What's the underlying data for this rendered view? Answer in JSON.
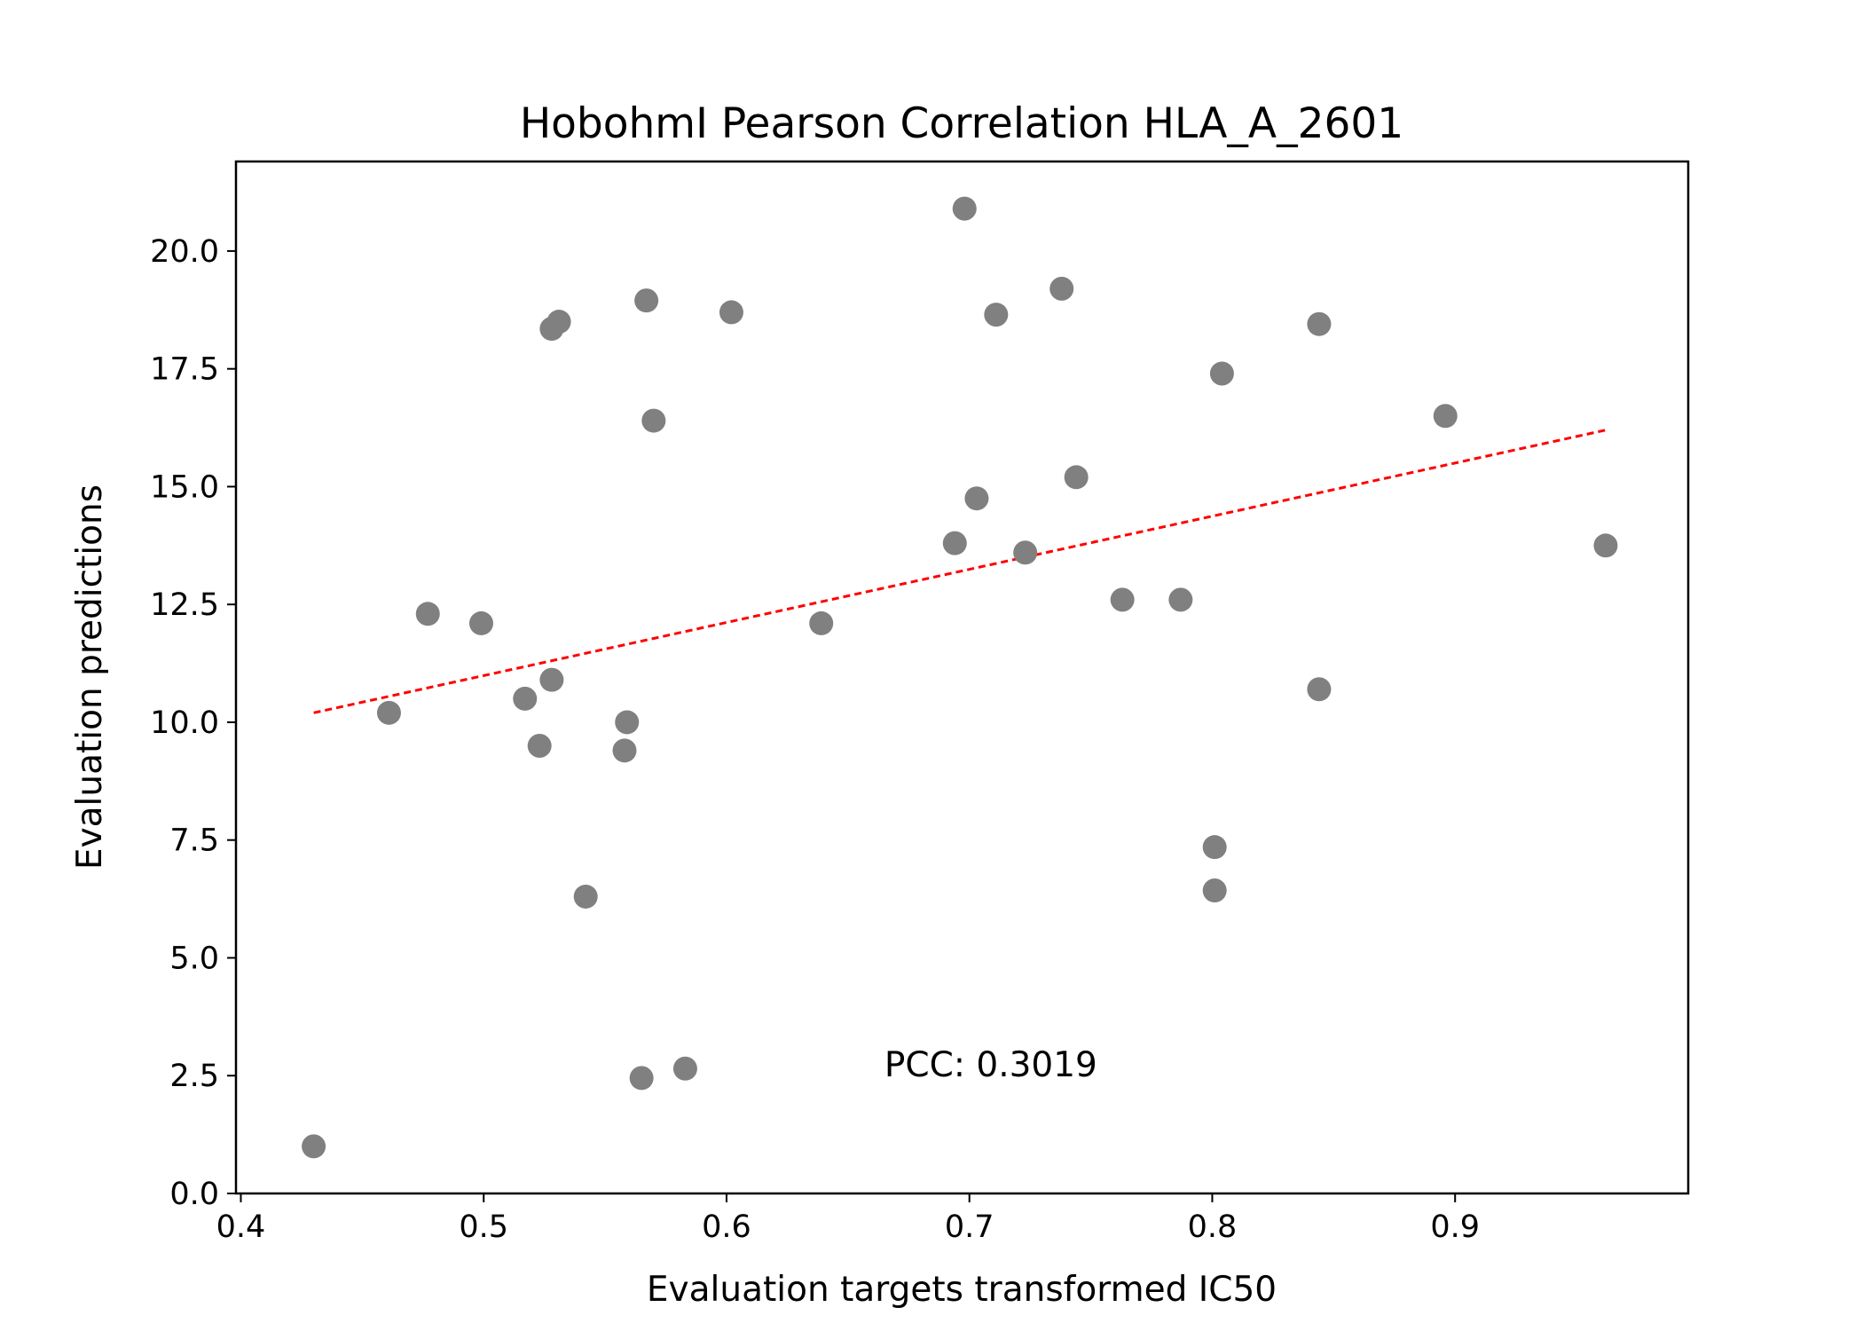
{
  "chart_data": {
    "type": "scatter",
    "title": "HobohmI Pearson Correlation HLA_A_2601",
    "xlabel": "Evaluation targets transformed IC50",
    "ylabel": "Evaluation predictions",
    "xlim": [
      0.398,
      0.996
    ],
    "ylim": [
      0.0,
      21.9
    ],
    "x_ticks": [
      0.4,
      0.5,
      0.6,
      0.7,
      0.8,
      0.9
    ],
    "x_tick_labels": [
      "0.4",
      "0.5",
      "0.6",
      "0.7",
      "0.8",
      "0.9"
    ],
    "y_ticks": [
      0.0,
      2.5,
      5.0,
      7.5,
      10.0,
      12.5,
      15.0,
      17.5,
      20.0
    ],
    "y_tick_labels": [
      "0.0",
      "2.5",
      "5.0",
      "7.5",
      "10.0",
      "12.5",
      "15.0",
      "17.5",
      "20.0"
    ],
    "grid": false,
    "point_color": "#808080",
    "trend_color": "#ff0000",
    "points": [
      {
        "x": 0.43,
        "y": 1.0
      },
      {
        "x": 0.461,
        "y": 10.2
      },
      {
        "x": 0.477,
        "y": 12.3
      },
      {
        "x": 0.499,
        "y": 12.1
      },
      {
        "x": 0.517,
        "y": 10.5
      },
      {
        "x": 0.523,
        "y": 9.5
      },
      {
        "x": 0.528,
        "y": 18.35
      },
      {
        "x": 0.528,
        "y": 10.9
      },
      {
        "x": 0.531,
        "y": 18.5
      },
      {
        "x": 0.542,
        "y": 6.3
      },
      {
        "x": 0.558,
        "y": 9.4
      },
      {
        "x": 0.559,
        "y": 10.0
      },
      {
        "x": 0.565,
        "y": 2.45
      },
      {
        "x": 0.567,
        "y": 18.95
      },
      {
        "x": 0.57,
        "y": 16.4
      },
      {
        "x": 0.583,
        "y": 2.65
      },
      {
        "x": 0.602,
        "y": 18.7
      },
      {
        "x": 0.639,
        "y": 12.1
      },
      {
        "x": 0.694,
        "y": 13.8
      },
      {
        "x": 0.698,
        "y": 20.9
      },
      {
        "x": 0.703,
        "y": 14.75
      },
      {
        "x": 0.711,
        "y": 18.65
      },
      {
        "x": 0.723,
        "y": 13.6
      },
      {
        "x": 0.738,
        "y": 19.2
      },
      {
        "x": 0.744,
        "y": 15.2
      },
      {
        "x": 0.763,
        "y": 12.6
      },
      {
        "x": 0.787,
        "y": 12.6
      },
      {
        "x": 0.801,
        "y": 7.35
      },
      {
        "x": 0.801,
        "y": 6.43
      },
      {
        "x": 0.804,
        "y": 17.4
      },
      {
        "x": 0.844,
        "y": 18.45
      },
      {
        "x": 0.844,
        "y": 10.7
      },
      {
        "x": 0.896,
        "y": 16.5
      },
      {
        "x": 0.962,
        "y": 13.75
      }
    ],
    "trend_line": {
      "x": [
        0.43,
        0.962
      ],
      "y": [
        10.2,
        16.2
      ]
    },
    "annotation": {
      "text": "PCC: 0.3019",
      "x": 0.665,
      "y": 2.75
    }
  }
}
